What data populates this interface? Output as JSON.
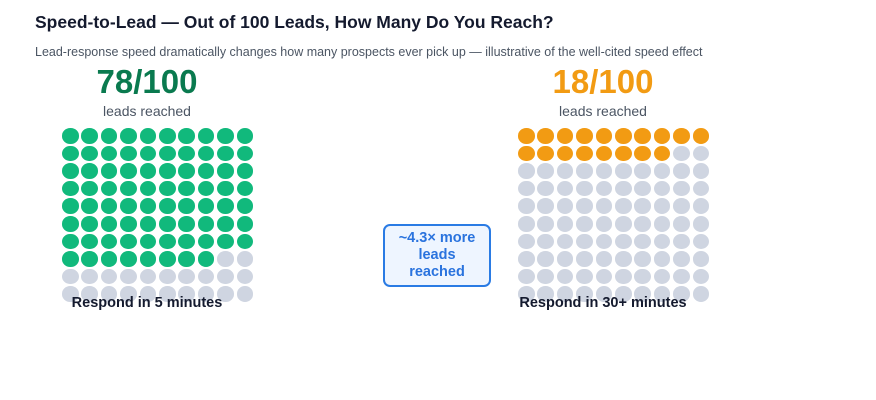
{
  "title": "Speed-to-Lead — Out of 100 Leads, How Many Do You Reach?",
  "subtitle": "Lead-response speed dramatically changes how many prospects ever pick up — illustrative of the well-cited speed effect",
  "colors": {
    "fast": "#11b97c",
    "fast_text": "#0a7a4f",
    "slow": "#f29b13",
    "slow_text": "#f29b13",
    "empty": "#cfd5e1",
    "callout_border": "#2a7be4",
    "callout_text": "#2a73de"
  },
  "chart_data": {
    "type": "waffle",
    "total": 100,
    "rows": 10,
    "cols": 10,
    "groups": [
      {
        "value": 78,
        "headline": "78/100",
        "unit_label": "leads reached",
        "caption": "Respond in 5 minutes"
      },
      {
        "value": 18,
        "headline": "18/100",
        "unit_label": "leads reached",
        "caption": "Respond in 30+ minutes"
      }
    ],
    "annotation": "~4.3× more leads reached"
  }
}
